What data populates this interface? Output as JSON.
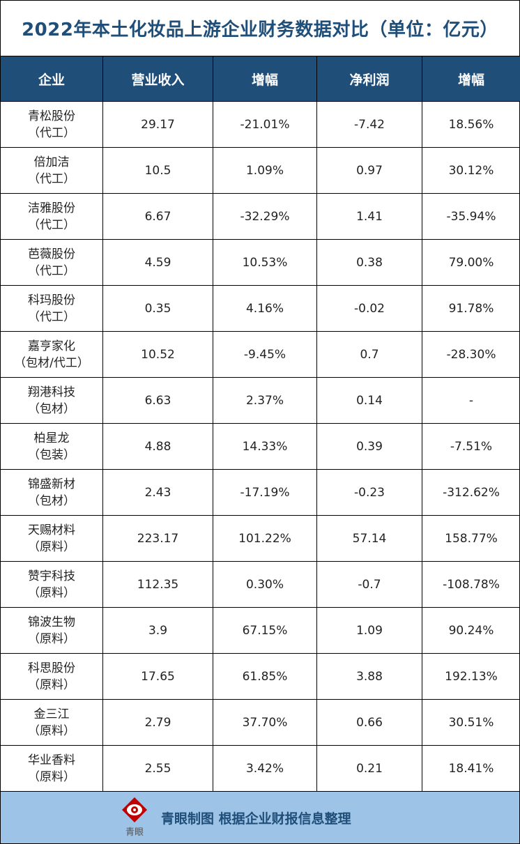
{
  "title": "2022年本土化妆品上游企业财务数据对比（单位：亿元）",
  "chart_data": {
    "type": "table",
    "title": "2022年本土化妆品上游企业财务数据对比（单位：亿元）",
    "columns": [
      "企业",
      "营业收入",
      "增幅",
      "净利润",
      "增幅"
    ],
    "rows": [
      {
        "name": "青松股份",
        "tag": "（代工）",
        "revenue": "29.17",
        "revenue_growth": "-21.01%",
        "profit": "-7.42",
        "profit_growth": "18.56%"
      },
      {
        "name": "倍加洁",
        "tag": "（代工）",
        "revenue": "10.5",
        "revenue_growth": "1.09%",
        "profit": "0.97",
        "profit_growth": "30.12%"
      },
      {
        "name": "洁雅股份",
        "tag": "（代工）",
        "revenue": "6.67",
        "revenue_growth": "-32.29%",
        "profit": "1.41",
        "profit_growth": "-35.94%"
      },
      {
        "name": "芭薇股份",
        "tag": "（代工）",
        "revenue": "4.59",
        "revenue_growth": "10.53%",
        "profit": "0.38",
        "profit_growth": "79.00%"
      },
      {
        "name": "科玛股份",
        "tag": "（代工）",
        "revenue": "0.35",
        "revenue_growth": "4.16%",
        "profit": "-0.02",
        "profit_growth": "91.78%"
      },
      {
        "name": "嘉亨家化",
        "tag": "（包材/代工）",
        "revenue": "10.52",
        "revenue_growth": "-9.45%",
        "profit": "0.7",
        "profit_growth": "-28.30%"
      },
      {
        "name": "翔港科技",
        "tag": "（包材）",
        "revenue": "6.63",
        "revenue_growth": "2.37%",
        "profit": "0.14",
        "profit_growth": "-"
      },
      {
        "name": "柏星龙",
        "tag": "（包装）",
        "revenue": "4.88",
        "revenue_growth": "14.33%",
        "profit": "0.39",
        "profit_growth": "-7.51%"
      },
      {
        "name": "锦盛新材",
        "tag": "（包材）",
        "revenue": "2.43",
        "revenue_growth": "-17.19%",
        "profit": "-0.23",
        "profit_growth": "-312.62%"
      },
      {
        "name": "天赐材料",
        "tag": "（原料）",
        "revenue": "223.17",
        "revenue_growth": "101.22%",
        "profit": "57.14",
        "profit_growth": "158.77%"
      },
      {
        "name": "赞宇科技",
        "tag": "（原料）",
        "revenue": "112.35",
        "revenue_growth": "0.30%",
        "profit": "-0.7",
        "profit_growth": "-108.78%"
      },
      {
        "name": "锦波生物",
        "tag": "（原料）",
        "revenue": "3.9",
        "revenue_growth": "67.15%",
        "profit": "1.09",
        "profit_growth": "90.24%"
      },
      {
        "name": "科思股份",
        "tag": "（原料）",
        "revenue": "17.65",
        "revenue_growth": "61.85%",
        "profit": "3.88",
        "profit_growth": "192.13%"
      },
      {
        "name": "金三江",
        "tag": "（原料）",
        "revenue": "2.79",
        "revenue_growth": "37.70%",
        "profit": "0.66",
        "profit_growth": "30.51%"
      },
      {
        "name": "华业香料",
        "tag": "（原料）",
        "revenue": "2.55",
        "revenue_growth": "3.42%",
        "profit": "0.21",
        "profit_growth": "18.41%"
      }
    ]
  },
  "footer": {
    "logo_text": "青眼",
    "text": "青眼制图 根据企业财报信息整理"
  },
  "colors": {
    "header_bg": "#1f4e79",
    "title": "#1f4e79",
    "footer_bg": "#9dc3e6",
    "logo": "#c00000"
  }
}
